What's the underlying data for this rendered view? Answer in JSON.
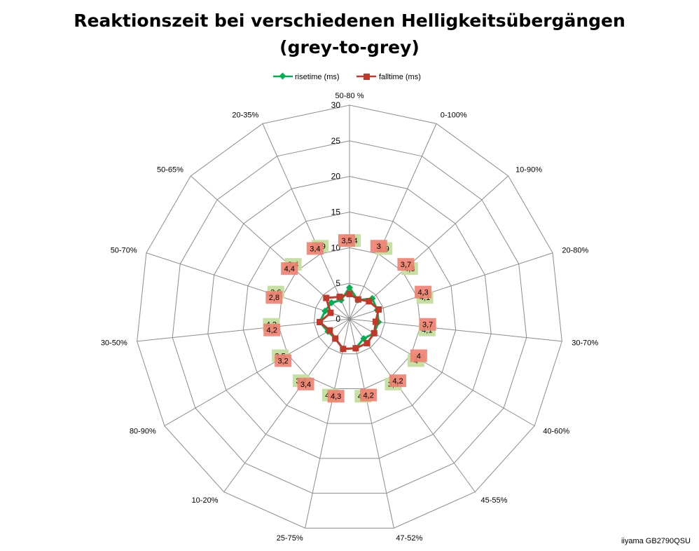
{
  "chart_data": {
    "type": "radar",
    "title_line1": "Reaktionszeit bei verschiedenen Helligkeitsübergängen",
    "title_line2": "(grey-to-grey)",
    "categories": [
      "50-80 %",
      "0-100%",
      "10-90%",
      "20-80%",
      "30-70%",
      "40-60%",
      "45-55%",
      "47-52%",
      "25-75%",
      "10-20%",
      "80-90%",
      "30-50%",
      "50-70%",
      "50-65%",
      "20-35%"
    ],
    "ticks": [
      "0",
      "5",
      "10",
      "15",
      "20",
      "25",
      "30"
    ],
    "rmax": 30,
    "series": [
      {
        "name": "risetime (ms)",
        "color": "#00b050",
        "label_bg": "#c6e0a4",
        "values": [
          4.4,
          2.9,
          4.3,
          4.1,
          4.1,
          4,
          3.4,
          4.2,
          4.3,
          3.4,
          3.5,
          4.2,
          3.6,
          3.4,
          2.9
        ],
        "labels": [
          "4,4",
          "2,9",
          "4,3",
          "4,1",
          "4,1",
          "4",
          "3,4",
          "4,2",
          "4,3",
          "3,4",
          "3,5",
          "4,2",
          "3,6",
          "3,4",
          "2,9"
        ]
      },
      {
        "name": "falltime (ms)",
        "color": "#c0392b",
        "label_bg": "#f08070",
        "values": [
          3.5,
          3,
          3.7,
          4.3,
          3.7,
          4,
          4.2,
          4.2,
          4.3,
          3.4,
          3.2,
          4.2,
          2.8,
          4.4,
          3.4
        ],
        "labels": [
          "3,5",
          "3",
          "3,7",
          "4,3",
          "3,7",
          "4",
          "4,2",
          "4,2",
          "4,3",
          "3,4",
          "3,2",
          "4,2",
          "2,8",
          "4,4",
          "3,4"
        ]
      }
    ],
    "legend_position": "top"
  },
  "watermark": "iiyama GB2790QSU"
}
